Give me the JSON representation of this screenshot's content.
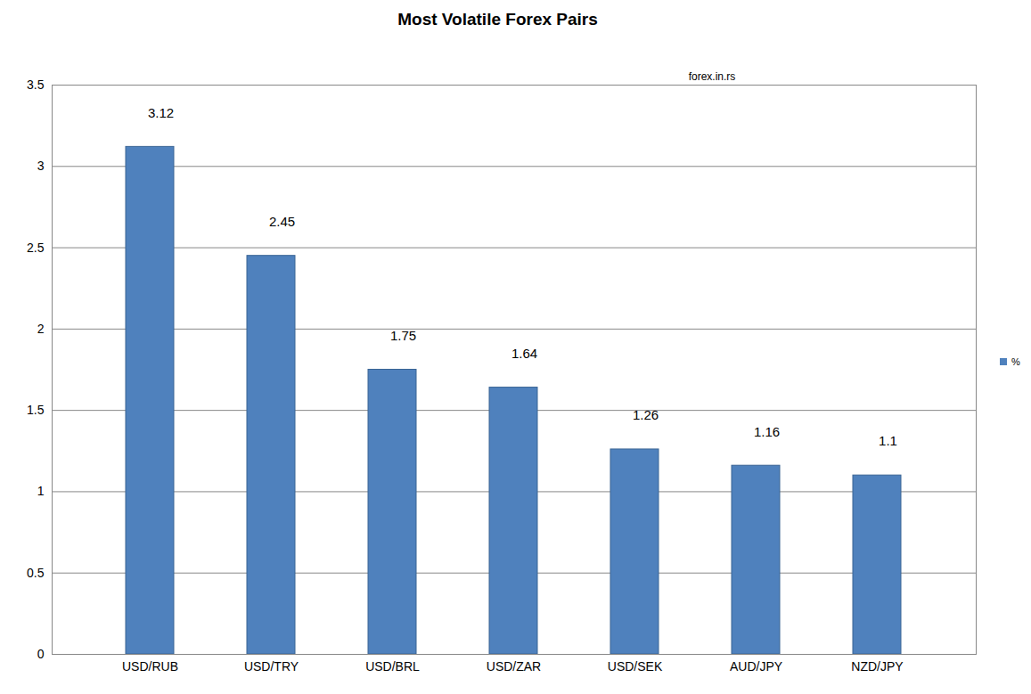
{
  "chart_data": {
    "type": "bar",
    "title": "Most Volatile Forex Pairs",
    "annotations": [
      "forex.in.rs"
    ],
    "categories": [
      "USD/RUB",
      "USD/TRY",
      "USD/BRL",
      "USD/ZAR",
      "USD/SEK",
      "AUD/JPY",
      "NZD/JPY"
    ],
    "series": [
      {
        "name": "%",
        "color": "#4f81bd",
        "values": [
          3.12,
          2.45,
          1.75,
          1.64,
          1.26,
          1.16,
          1.1
        ]
      }
    ],
    "ylim": [
      0,
      3.5
    ],
    "yticks": [
      0,
      0.5,
      1,
      1.5,
      2,
      2.5,
      3,
      3.5
    ],
    "grid": true,
    "data_labels": true,
    "legend": "right"
  }
}
